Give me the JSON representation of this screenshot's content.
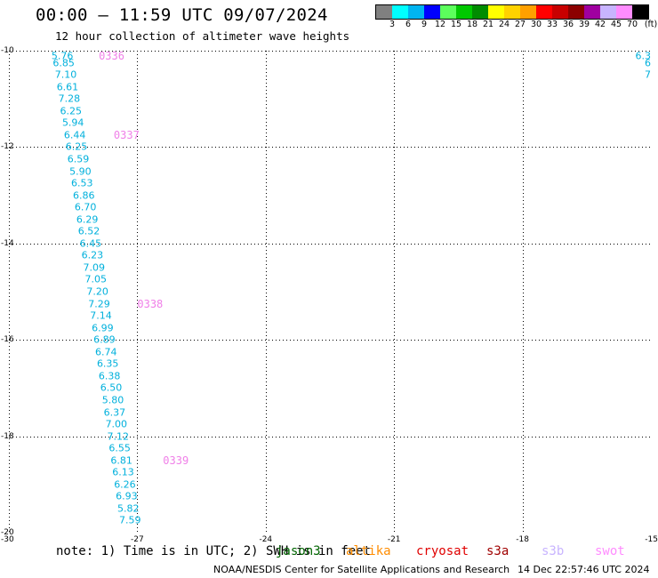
{
  "header": {
    "title": "00:00 – 11:59 UTC 09/07/2024",
    "subtitle": "12 hour collection of altimeter wave heights"
  },
  "color_scale": {
    "unit_label": "(ft)",
    "bins": [
      {
        "label": "3",
        "color": "#808080"
      },
      {
        "label": "6",
        "color": "#00ffff"
      },
      {
        "label": "9",
        "color": "#00b4f0"
      },
      {
        "label": "12",
        "color": "#0000ff"
      },
      {
        "label": "15",
        "color": "#5cff5c"
      },
      {
        "label": "18",
        "color": "#00c800"
      },
      {
        "label": "21",
        "color": "#008c00"
      },
      {
        "label": "24",
        "color": "#ffff00"
      },
      {
        "label": "27",
        "color": "#ffd200"
      },
      {
        "label": "30",
        "color": "#ffa000"
      },
      {
        "label": "33",
        "color": "#ff0000"
      },
      {
        "label": "36",
        "color": "#c80000"
      },
      {
        "label": "39",
        "color": "#8c0000"
      },
      {
        "label": "42",
        "color": "#a000a0"
      },
      {
        "label": "45",
        "color": "#c8b4ff"
      },
      {
        "label": "70",
        "color": "#ff8cff"
      },
      {
        "label": "",
        "color": "#000000"
      }
    ]
  },
  "map": {
    "lat_ticks": [
      "-10",
      "-12",
      "-14",
      "-16",
      "-18",
      "-20"
    ],
    "lon_ticks": [
      "-30",
      "-27",
      "-24",
      "-21",
      "-18",
      "-15"
    ],
    "lat_range": [
      -20,
      -10
    ],
    "lon_range": [
      -30,
      -15
    ],
    "track": {
      "color": "#00b0dc",
      "points": [
        {
          "lat": -10.0,
          "lon": -28.75,
          "value": "5.76"
        },
        {
          "lat": -10.25,
          "lon": -28.72,
          "value": "6.85"
        },
        {
          "lat": -10.5,
          "lon": -28.67,
          "value": "7.10"
        },
        {
          "lat": -10.75,
          "lon": -28.63,
          "value": "6.61"
        },
        {
          "lat": -11.0,
          "lon": -28.59,
          "value": "7.28"
        },
        {
          "lat": -11.25,
          "lon": -28.55,
          "value": "6.25"
        },
        {
          "lat": -11.5,
          "lon": -28.5,
          "value": "5.94"
        },
        {
          "lat": -11.75,
          "lon": -28.46,
          "value": "6.44"
        },
        {
          "lat": -12.0,
          "lon": -28.42,
          "value": "6.25"
        },
        {
          "lat": -12.25,
          "lon": -28.38,
          "value": "6.59"
        },
        {
          "lat": -12.5,
          "lon": -28.33,
          "value": "5.90"
        },
        {
          "lat": -12.75,
          "lon": -28.29,
          "value": "6.53"
        },
        {
          "lat": -13.0,
          "lon": -28.25,
          "value": "6.86"
        },
        {
          "lat": -13.25,
          "lon": -28.21,
          "value": "6.70"
        },
        {
          "lat": -13.5,
          "lon": -28.17,
          "value": "6.29"
        },
        {
          "lat": -13.75,
          "lon": -28.13,
          "value": "6.52"
        },
        {
          "lat": -14.0,
          "lon": -28.09,
          "value": "6.45"
        },
        {
          "lat": -14.25,
          "lon": -28.05,
          "value": "6.23"
        },
        {
          "lat": -14.5,
          "lon": -28.01,
          "value": "7.09"
        },
        {
          "lat": -14.75,
          "lon": -27.97,
          "value": "7.05"
        },
        {
          "lat": -15.0,
          "lon": -27.93,
          "value": "7.20"
        },
        {
          "lat": -15.25,
          "lon": -27.89,
          "value": "7.29"
        },
        {
          "lat": -15.5,
          "lon": -27.85,
          "value": "7.14"
        },
        {
          "lat": -15.75,
          "lon": -27.81,
          "value": "6.99"
        },
        {
          "lat": -16.0,
          "lon": -27.77,
          "value": "6.89"
        },
        {
          "lat": -16.25,
          "lon": -27.73,
          "value": "6.74"
        },
        {
          "lat": -16.5,
          "lon": -27.69,
          "value": "6.35"
        },
        {
          "lat": -16.75,
          "lon": -27.65,
          "value": "6.38"
        },
        {
          "lat": -17.0,
          "lon": -27.61,
          "value": "6.50"
        },
        {
          "lat": -17.25,
          "lon": -27.57,
          "value": "5.80"
        },
        {
          "lat": -17.5,
          "lon": -27.53,
          "value": "6.37"
        },
        {
          "lat": -17.75,
          "lon": -27.49,
          "value": "7.00"
        },
        {
          "lat": -18.0,
          "lon": -27.45,
          "value": "7.12"
        },
        {
          "lat": -18.25,
          "lon": -27.41,
          "value": "6.55"
        },
        {
          "lat": -18.5,
          "lon": -27.37,
          "value": "6.81"
        },
        {
          "lat": -18.75,
          "lon": -27.33,
          "value": "6.13"
        },
        {
          "lat": -19.0,
          "lon": -27.29,
          "value": "6.26"
        },
        {
          "lat": -19.25,
          "lon": -27.25,
          "value": "6.93"
        },
        {
          "lat": -19.5,
          "lon": -27.21,
          "value": "5.82"
        },
        {
          "lat": -19.75,
          "lon": -27.17,
          "value": "7.59"
        }
      ]
    },
    "pass_times": [
      {
        "lat": -10.0,
        "lon": -27.6,
        "label": "0336"
      },
      {
        "lat": -11.75,
        "lon": -27.25,
        "label": "0337"
      },
      {
        "lat": -15.25,
        "lon": -26.7,
        "label": "0338"
      },
      {
        "lat": -18.5,
        "lon": -26.1,
        "label": "0339"
      }
    ],
    "edge_values": [
      {
        "lat": -10.0,
        "label": "6.3"
      },
      {
        "lat": -10.25,
        "label": "6"
      },
      {
        "lat": -10.5,
        "label": "7"
      }
    ]
  },
  "footer": {
    "note": "note: 1) Time is in UTC; 2) SWH is in feet",
    "satellites": [
      {
        "name": "jason3",
        "color": "#006400"
      },
      {
        "name": "altika",
        "color": "#ff8c00"
      },
      {
        "name": "cryosat",
        "color": "#e00000"
      },
      {
        "name": "s3a",
        "color": "#a00000"
      },
      {
        "name": "s3b",
        "color": "#c8b4ff"
      },
      {
        "name": "swot",
        "color": "#ff8cff"
      }
    ],
    "credit": "NOAA/NESDIS Center for Satellite Applications and Research",
    "timestamp": "14 Dec 22:57:46 UTC 2024"
  }
}
